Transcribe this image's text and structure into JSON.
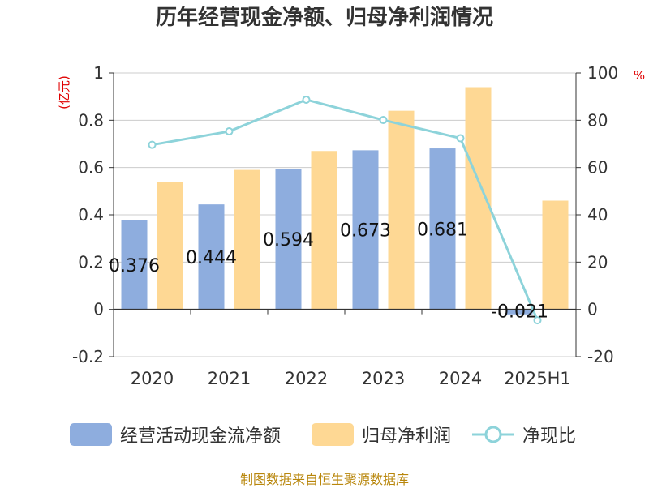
{
  "title": "历年经营现金净额、归母净利润情况",
  "source": "制图数据来自恒生聚源数据库",
  "colors": {
    "cash_flow": "#8eadde",
    "net_profit": "#fed894",
    "ratio": "#8dd3da",
    "axis_unit": "#e00000",
    "source": "#b8860b"
  },
  "chart_data": {
    "type": "bar",
    "title": "历年经营现金净额、归母净利润情况",
    "categories": [
      "2020",
      "2021",
      "2022",
      "2023",
      "2024",
      "2025H1"
    ],
    "y_left": {
      "label": "(亿元)",
      "ticks": [
        "1",
        "0.8",
        "0.6",
        "0.4",
        "0.2",
        "0",
        "-0.2"
      ],
      "ylim": [
        -0.2,
        1
      ]
    },
    "y_right": {
      "label": "%",
      "ticks": [
        "100",
        "80",
        "60",
        "40",
        "20",
        "0",
        "-20"
      ],
      "ylim": [
        -20,
        100
      ]
    },
    "series": [
      {
        "name": "经营活动现金流净额",
        "type": "bar",
        "axis": "left",
        "values": [
          0.376,
          0.444,
          0.594,
          0.673,
          0.681,
          -0.021
        ],
        "labels": [
          "0.376",
          "0.444",
          "0.594",
          "0.673",
          "0.681",
          "-0.021"
        ]
      },
      {
        "name": "归母净利润",
        "type": "bar",
        "axis": "left",
        "values": [
          0.54,
          0.59,
          0.67,
          0.84,
          0.94,
          0.46
        ]
      },
      {
        "name": "净现比",
        "type": "line",
        "axis": "right",
        "values": [
          69.6,
          75.3,
          88.7,
          80.1,
          72.4,
          -4.6
        ]
      }
    ],
    "grid": true,
    "legend_position": "bottom"
  }
}
